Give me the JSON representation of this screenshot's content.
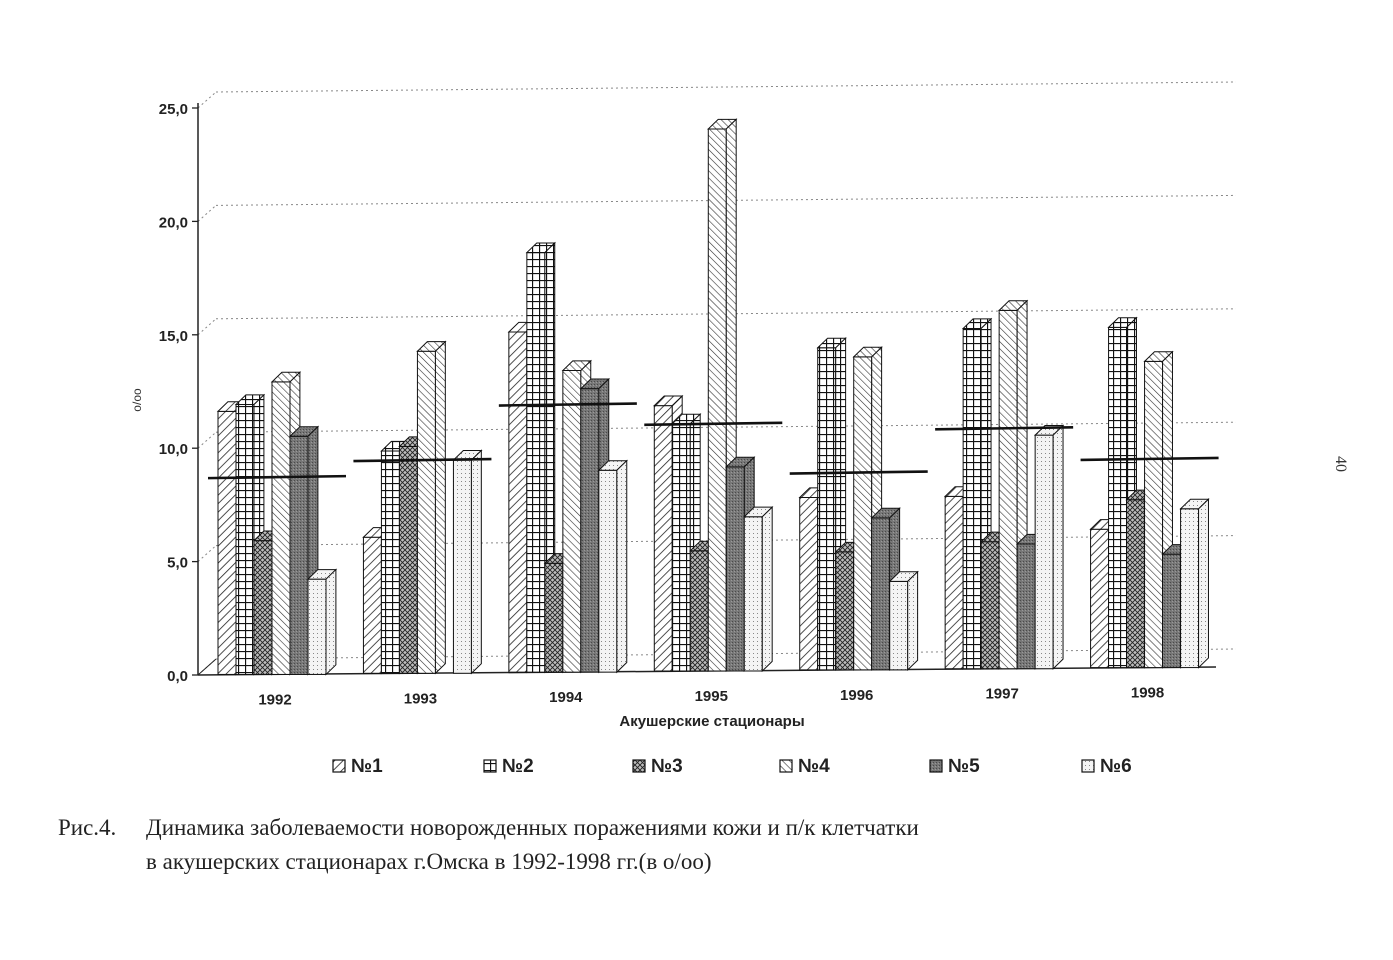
{
  "page_number": "40",
  "caption": {
    "label": "Рис.4.",
    "line1": "Динамика заболеваемости новорожденных поражениями кожи и п/к клетчатки",
    "line2": "в акушерских стационарах г.Омска в 1992-1998 гг.(в о/оо)"
  },
  "chart_data": {
    "type": "bar",
    "title": "",
    "xlabel": "Акушерские стационары",
    "ylabel": "о/оо",
    "ylim": [
      0,
      25
    ],
    "yticks": [
      "0,0",
      "5,0",
      "10,0",
      "15,0",
      "20,0",
      "25,0"
    ],
    "grid": true,
    "legend_position": "bottom",
    "categories": [
      "1992",
      "1993",
      "1994",
      "1995",
      "1996",
      "1997",
      "1998"
    ],
    "series": [
      {
        "name": "№1",
        "values": [
          11.6,
          6.0,
          15.0,
          11.7,
          7.6,
          7.6,
          6.1
        ]
      },
      {
        "name": "№2",
        "values": [
          11.9,
          9.8,
          18.5,
          10.9,
          14.2,
          15.0,
          15.0
        ]
      },
      {
        "name": "№3",
        "values": [
          5.9,
          10.0,
          4.8,
          5.3,
          5.2,
          5.6,
          7.4
        ]
      },
      {
        "name": "№4",
        "values": [
          12.9,
          14.2,
          13.3,
          23.9,
          13.8,
          15.8,
          13.5
        ]
      },
      {
        "name": "№5",
        "values": [
          10.5,
          0.0,
          12.5,
          9.0,
          6.7,
          5.5,
          5.0
        ]
      },
      {
        "name": "№6",
        "values": [
          4.2,
          9.4,
          8.9,
          6.8,
          3.9,
          10.3,
          7.0
        ]
      }
    ],
    "average": [
      8.7,
      9.4,
      11.8,
      10.9,
      8.7,
      10.6,
      9.2
    ]
  }
}
